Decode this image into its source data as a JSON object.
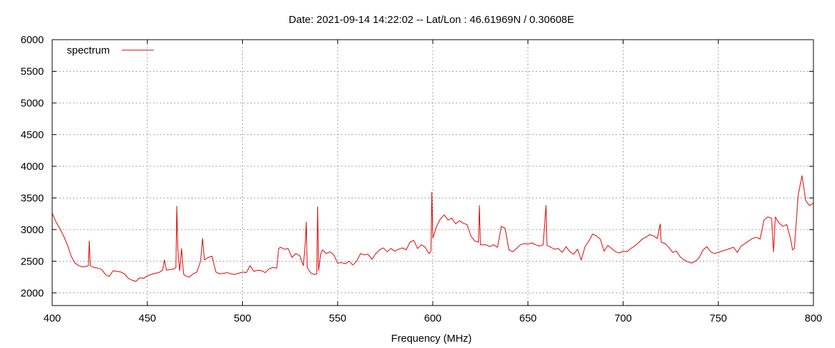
{
  "chart_data": {
    "type": "line",
    "title": "Date: 2021-09-14 14:22:02  --  Lat/Lon : 46.61969N / 0.30608E",
    "xlabel": "Frequency (MHz)",
    "ylabel": "",
    "xlim": [
      400,
      800
    ],
    "ylim": [
      1800,
      6000
    ],
    "x_ticks": [
      400,
      450,
      500,
      550,
      600,
      650,
      700,
      750,
      800
    ],
    "y_ticks": [
      2000,
      2500,
      3000,
      3500,
      4000,
      4500,
      5000,
      5500,
      6000
    ],
    "grid": true,
    "legend_position": "top-left",
    "series": [
      {
        "name": "spectrum",
        "color": "#e00000",
        "points": [
          [
            400,
            3260
          ],
          [
            402,
            3120
          ],
          [
            404,
            3020
          ],
          [
            406,
            2900
          ],
          [
            408,
            2760
          ],
          [
            410,
            2580
          ],
          [
            412,
            2470
          ],
          [
            414,
            2430
          ],
          [
            416,
            2410
          ],
          [
            418,
            2420
          ],
          [
            419,
            2430
          ],
          [
            419.5,
            2820
          ],
          [
            420,
            2430
          ],
          [
            422,
            2400
          ],
          [
            424,
            2390
          ],
          [
            426,
            2370
          ],
          [
            428,
            2290
          ],
          [
            430,
            2260
          ],
          [
            432,
            2350
          ],
          [
            434,
            2340
          ],
          [
            436,
            2330
          ],
          [
            438,
            2300
          ],
          [
            440,
            2230
          ],
          [
            442,
            2200
          ],
          [
            444,
            2180
          ],
          [
            446,
            2240
          ],
          [
            448,
            2230
          ],
          [
            450,
            2270
          ],
          [
            452,
            2290
          ],
          [
            454,
            2310
          ],
          [
            456,
            2320
          ],
          [
            458,
            2360
          ],
          [
            459,
            2520
          ],
          [
            460,
            2360
          ],
          [
            462,
            2370
          ],
          [
            464,
            2380
          ],
          [
            465,
            2400
          ],
          [
            465.5,
            3370
          ],
          [
            466,
            2700
          ],
          [
            467,
            2350
          ],
          [
            468,
            2700
          ],
          [
            469,
            2300
          ],
          [
            470,
            2270
          ],
          [
            472,
            2250
          ],
          [
            474,
            2300
          ],
          [
            476,
            2330
          ],
          [
            478,
            2500
          ],
          [
            479,
            2860
          ],
          [
            480,
            2520
          ],
          [
            482,
            2560
          ],
          [
            484,
            2580
          ],
          [
            486,
            2330
          ],
          [
            488,
            2300
          ],
          [
            490,
            2310
          ],
          [
            492,
            2320
          ],
          [
            494,
            2300
          ],
          [
            496,
            2290
          ],
          [
            498,
            2310
          ],
          [
            500,
            2330
          ],
          [
            502,
            2320
          ],
          [
            504,
            2430
          ],
          [
            506,
            2340
          ],
          [
            508,
            2360
          ],
          [
            510,
            2350
          ],
          [
            512,
            2320
          ],
          [
            514,
            2380
          ],
          [
            516,
            2400
          ],
          [
            518,
            2390
          ],
          [
            519,
            2700
          ],
          [
            520,
            2720
          ],
          [
            522,
            2690
          ],
          [
            524,
            2700
          ],
          [
            526,
            2560
          ],
          [
            528,
            2620
          ],
          [
            530,
            2590
          ],
          [
            532,
            2430
          ],
          [
            533,
            2800
          ],
          [
            533.5,
            3120
          ],
          [
            534,
            2400
          ],
          [
            536,
            2310
          ],
          [
            538,
            2290
          ],
          [
            539,
            2300
          ],
          [
            539.5,
            3360
          ],
          [
            540,
            2350
          ],
          [
            541,
            2600
          ],
          [
            542,
            2680
          ],
          [
            544,
            2620
          ],
          [
            546,
            2650
          ],
          [
            548,
            2600
          ],
          [
            550,
            2470
          ],
          [
            552,
            2480
          ],
          [
            554,
            2460
          ],
          [
            556,
            2500
          ],
          [
            558,
            2440
          ],
          [
            560,
            2500
          ],
          [
            562,
            2620
          ],
          [
            564,
            2600
          ],
          [
            566,
            2610
          ],
          [
            568,
            2530
          ],
          [
            570,
            2620
          ],
          [
            572,
            2680
          ],
          [
            574,
            2710
          ],
          [
            576,
            2650
          ],
          [
            578,
            2700
          ],
          [
            580,
            2660
          ],
          [
            582,
            2690
          ],
          [
            584,
            2710
          ],
          [
            586,
            2680
          ],
          [
            588,
            2800
          ],
          [
            590,
            2830
          ],
          [
            592,
            2700
          ],
          [
            594,
            2760
          ],
          [
            596,
            2720
          ],
          [
            598,
            2620
          ],
          [
            599,
            2660
          ],
          [
            599.5,
            3590
          ],
          [
            600,
            2870
          ],
          [
            602,
            3050
          ],
          [
            604,
            3170
          ],
          [
            606,
            3230
          ],
          [
            608,
            3150
          ],
          [
            610,
            3180
          ],
          [
            612,
            3090
          ],
          [
            614,
            3140
          ],
          [
            616,
            3100
          ],
          [
            618,
            3080
          ],
          [
            620,
            2900
          ],
          [
            622,
            2820
          ],
          [
            624,
            2800
          ],
          [
            624.5,
            3380
          ],
          [
            625,
            2760
          ],
          [
            628,
            2760
          ],
          [
            630,
            2730
          ],
          [
            632,
            2760
          ],
          [
            634,
            2720
          ],
          [
            636,
            3050
          ],
          [
            638,
            3020
          ],
          [
            640,
            2680
          ],
          [
            642,
            2650
          ],
          [
            644,
            2700
          ],
          [
            646,
            2760
          ],
          [
            648,
            2780
          ],
          [
            650,
            2770
          ],
          [
            652,
            2790
          ],
          [
            654,
            2760
          ],
          [
            656,
            2740
          ],
          [
            658,
            2760
          ],
          [
            659.5,
            3380
          ],
          [
            660,
            2750
          ],
          [
            662,
            2720
          ],
          [
            664,
            2690
          ],
          [
            666,
            2700
          ],
          [
            668,
            2640
          ],
          [
            670,
            2730
          ],
          [
            672,
            2650
          ],
          [
            674,
            2610
          ],
          [
            676,
            2690
          ],
          [
            678,
            2520
          ],
          [
            680,
            2730
          ],
          [
            682,
            2820
          ],
          [
            684,
            2930
          ],
          [
            686,
            2900
          ],
          [
            688,
            2850
          ],
          [
            690,
            2660
          ],
          [
            692,
            2750
          ],
          [
            694,
            2700
          ],
          [
            696,
            2650
          ],
          [
            698,
            2630
          ],
          [
            700,
            2660
          ],
          [
            702,
            2650
          ],
          [
            704,
            2700
          ],
          [
            706,
            2740
          ],
          [
            708,
            2790
          ],
          [
            710,
            2850
          ],
          [
            712,
            2880
          ],
          [
            714,
            2920
          ],
          [
            716,
            2900
          ],
          [
            718,
            2860
          ],
          [
            719.5,
            3090
          ],
          [
            720,
            2800
          ],
          [
            722,
            2780
          ],
          [
            724,
            2720
          ],
          [
            726,
            2640
          ],
          [
            728,
            2660
          ],
          [
            730,
            2570
          ],
          [
            732,
            2520
          ],
          [
            734,
            2490
          ],
          [
            736,
            2470
          ],
          [
            738,
            2500
          ],
          [
            740,
            2560
          ],
          [
            742,
            2680
          ],
          [
            744,
            2730
          ],
          [
            746,
            2650
          ],
          [
            748,
            2620
          ],
          [
            750,
            2640
          ],
          [
            752,
            2660
          ],
          [
            754,
            2680
          ],
          [
            756,
            2700
          ],
          [
            758,
            2720
          ],
          [
            760,
            2640
          ],
          [
            762,
            2740
          ],
          [
            764,
            2780
          ],
          [
            766,
            2820
          ],
          [
            768,
            2860
          ],
          [
            770,
            2880
          ],
          [
            772,
            2850
          ],
          [
            774,
            3150
          ],
          [
            776,
            3200
          ],
          [
            778,
            3180
          ],
          [
            779,
            2650
          ],
          [
            780,
            3200
          ],
          [
            782,
            3100
          ],
          [
            784,
            3050
          ],
          [
            786,
            3080
          ],
          [
            788,
            2850
          ],
          [
            789,
            2680
          ],
          [
            790,
            2700
          ],
          [
            792,
            3550
          ],
          [
            794,
            3850
          ],
          [
            796,
            3450
          ],
          [
            798,
            3380
          ],
          [
            800,
            3420
          ]
        ]
      }
    ]
  }
}
